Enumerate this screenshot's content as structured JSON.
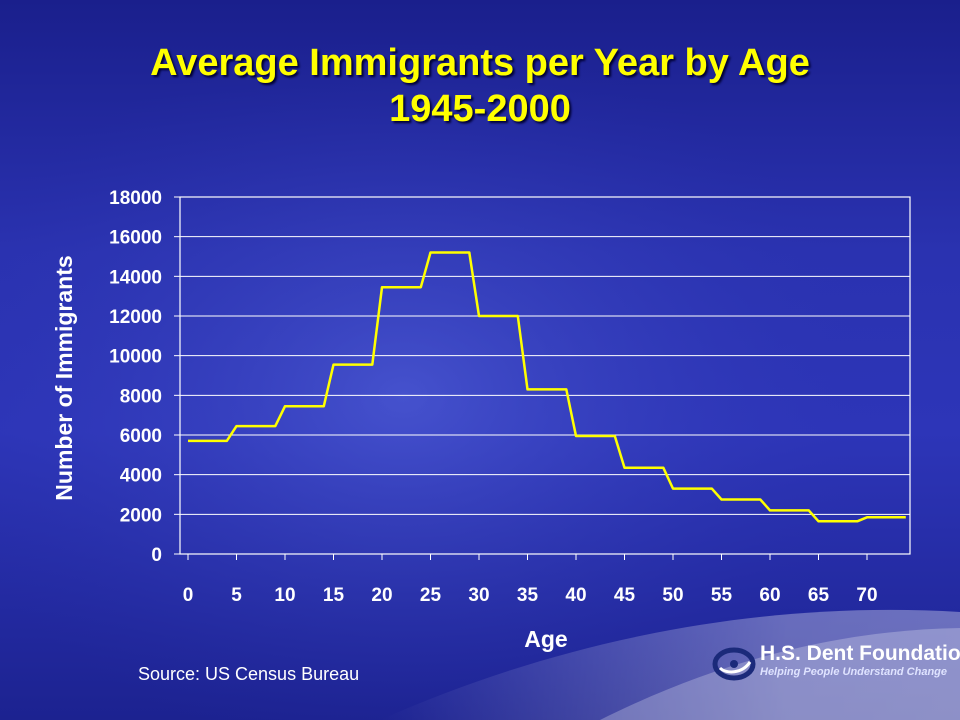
{
  "slide": {
    "title_line1": "Average Immigrants per Year by Age",
    "title_line2": "1945-2000",
    "source": "Source: US Census Bureau"
  },
  "logo": {
    "name": "H.S. Dent Foundation",
    "tagline": "Helping People Understand Change"
  },
  "colors": {
    "title": "#ffff00",
    "line": "#ffff00",
    "grid": "#ffffff",
    "text": "#ffffff"
  },
  "chart_data": {
    "type": "line",
    "title": "Average Immigrants per Year by Age 1945-2000",
    "xlabel": "Age",
    "ylabel": "Number of Immigrants",
    "xlim": [
      0,
      75
    ],
    "ylim": [
      0,
      18000
    ],
    "xticks": [
      0,
      5,
      10,
      15,
      20,
      25,
      30,
      35,
      40,
      45,
      50,
      55,
      60,
      65,
      70
    ],
    "yticks": [
      0,
      2000,
      4000,
      6000,
      8000,
      10000,
      12000,
      14000,
      16000,
      18000
    ],
    "grid": "horizontal",
    "legend": "none",
    "series": [
      {
        "x": [
          0,
          1,
          2,
          3,
          4,
          5,
          6,
          7,
          8,
          9,
          10,
          11,
          12,
          13,
          14,
          15,
          16,
          17,
          18,
          19,
          20,
          21,
          22,
          23,
          24,
          25,
          26,
          27,
          28,
          29,
          30,
          31,
          32,
          33,
          34,
          35,
          36,
          37,
          38,
          39,
          40,
          41,
          42,
          43,
          44,
          45,
          46,
          47,
          48,
          49,
          50,
          51,
          52,
          53,
          54,
          55,
          56,
          57,
          58,
          59,
          60,
          61,
          62,
          63,
          64,
          65,
          66,
          67,
          68,
          69,
          70,
          71,
          72,
          73,
          74
        ],
        "values": [
          5700,
          5700,
          5700,
          5700,
          5700,
          6450,
          6450,
          6450,
          6450,
          6450,
          7450,
          7450,
          7450,
          7450,
          7450,
          9550,
          9550,
          9550,
          9550,
          9550,
          13450,
          13450,
          13450,
          13450,
          13450,
          15200,
          15200,
          15200,
          15200,
          15200,
          12000,
          12000,
          12000,
          12000,
          12000,
          8300,
          8300,
          8300,
          8300,
          8300,
          5950,
          5950,
          5950,
          5950,
          5950,
          4350,
          4350,
          4350,
          4350,
          4350,
          3300,
          3300,
          3300,
          3300,
          3300,
          2750,
          2750,
          2750,
          2750,
          2750,
          2200,
          2200,
          2200,
          2200,
          2200,
          1650,
          1650,
          1650,
          1650,
          1650,
          1850,
          1850,
          1850,
          1850,
          1850
        ]
      }
    ]
  }
}
